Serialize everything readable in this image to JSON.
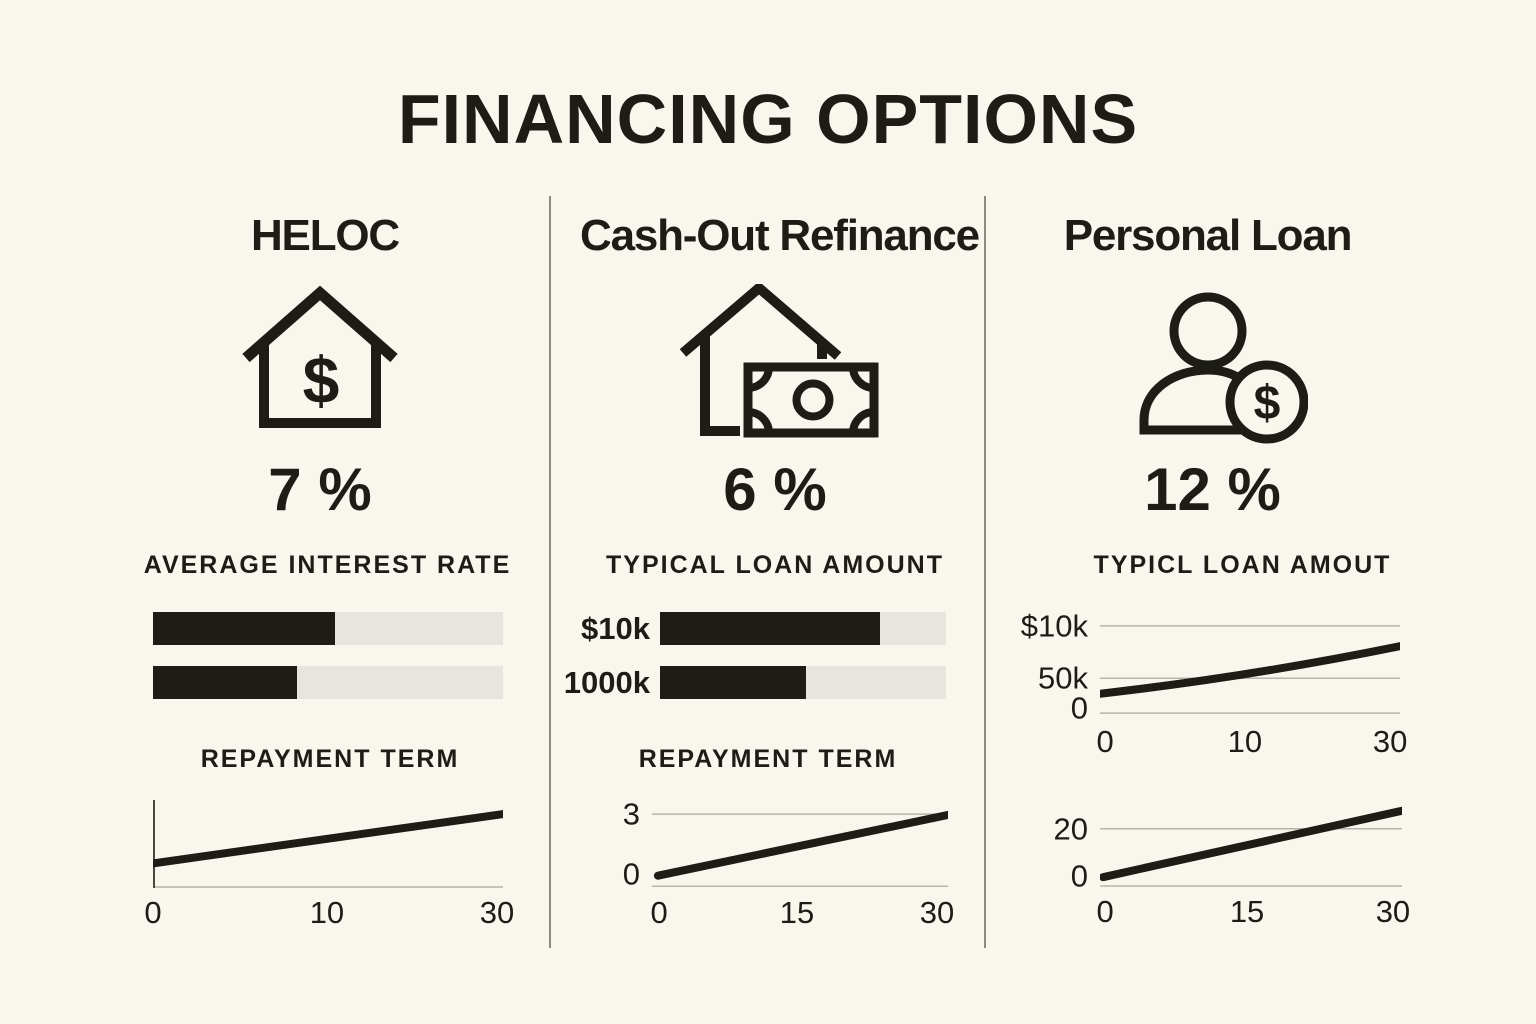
{
  "title": "FINANCING OPTIONS",
  "colors": {
    "background": "#f9f6ee",
    "ink": "#1d1c17",
    "bar_track": "#e8e5de",
    "gridline": "#b7b4ab",
    "divider": "#514e45"
  },
  "columns": [
    {
      "name": "HELOC",
      "icon": "house-dollar-icon",
      "rate": "7 %",
      "section1_label": "AVERAGE INTEREST RATE",
      "section2_label": "REPAYMENT TERM"
    },
    {
      "name": "Cash-Out Refinance",
      "icon": "house-banknote-icon",
      "rate": "6 %",
      "section1_label": "TYPICAL LOAN AMOUNT",
      "section2_label": "REPAYMENT TERM"
    },
    {
      "name": "Personal Loan",
      "icon": "person-coin-icon",
      "rate": "12 %",
      "section1_label": "TYPICL LOAN AMOUT"
    }
  ],
  "chart_data": [
    {
      "id": "heloc-rate-bars",
      "type": "bar",
      "title": "AVERAGE INTEREST RATE",
      "column": "HELOC",
      "orientation": "horizontal",
      "rows": [
        {
          "label": "",
          "fill_pct": 52
        },
        {
          "label": "",
          "fill_pct": 41
        }
      ],
      "note": "two unlabeled comparison bars, dark fill on light track"
    },
    {
      "id": "heloc-term-line",
      "type": "line",
      "title": "REPAYMENT TERM",
      "column": "HELOC",
      "x_range": [
        0,
        30
      ],
      "x_ticks": [
        {
          "label": "0",
          "pct": 0
        },
        {
          "label": "10",
          "pct": 49.7
        },
        {
          "label": "30",
          "pct": 98.3
        }
      ],
      "y_ticks": [],
      "gridlines_pct": [
        100
      ],
      "y_axis": true,
      "curve": false,
      "points_pct": [
        [
          0,
          72
        ],
        [
          100,
          16
        ]
      ],
      "data_est": {
        "x": [
          0,
          30
        ],
        "y_relative": [
          0.3,
          0.85
        ],
        "trend": "rising"
      }
    },
    {
      "id": "cashout-amount-bars",
      "type": "bar",
      "title": "TYPICAL LOAN AMOUNT",
      "column": "Cash-Out Refinance",
      "orientation": "horizontal",
      "rows": [
        {
          "label": "$10k",
          "fill_pct": 77
        },
        {
          "label": "1000k",
          "fill_pct": 51
        }
      ]
    },
    {
      "id": "cashout-term-line",
      "type": "line",
      "title": "REPAYMENT TERM",
      "column": "Cash-Out Refinance",
      "x_range": [
        0,
        30
      ],
      "y_range": [
        0,
        3
      ],
      "x_ticks": [
        {
          "label": "0",
          "pct": 2.4
        },
        {
          "label": "15",
          "pct": 49
        },
        {
          "label": "30",
          "pct": 96.3
        }
      ],
      "y_ticks": [
        {
          "label": "3",
          "pct": 16
        },
        {
          "label": "0",
          "pct": 84
        }
      ],
      "gridlines_pct": [
        16,
        98
      ],
      "y_axis": false,
      "curve": false,
      "points_pct": [
        [
          2,
          86
        ],
        [
          100,
          17
        ]
      ],
      "data_est": {
        "x": [
          0,
          30
        ],
        "y": [
          0,
          3
        ],
        "trend": "rising straight line"
      }
    },
    {
      "id": "personal-amount-line",
      "type": "line",
      "title": "TYPICL LOAN AMOUT",
      "column": "Personal Loan",
      "x_range": [
        0,
        30
      ],
      "x_ticks": [
        {
          "label": "0",
          "pct": 1.7
        },
        {
          "label": "10",
          "pct": 48.3
        },
        {
          "label": "30",
          "pct": 96.7
        }
      ],
      "y_ticks": [
        {
          "label": "$10k",
          "pct": 6
        },
        {
          "label": "50k",
          "pct": 60
        },
        {
          "label": "0",
          "pct": 91
        }
      ],
      "gridlines_pct": [
        6,
        60,
        96
      ],
      "y_axis": false,
      "curve": true,
      "points_pct": [
        [
          0,
          76
        ],
        [
          50,
          55
        ],
        [
          100,
          27
        ]
      ],
      "data_est": {
        "x": [
          0,
          30
        ],
        "y": [
          "~40k",
          "~80k"
        ],
        "trend": "rising curve, steepens toward 30"
      }
    },
    {
      "id": "personal-term-line",
      "type": "line",
      "title": "",
      "column": "Personal Loan",
      "x_range": [
        0,
        30
      ],
      "x_ticks": [
        {
          "label": "0",
          "pct": 1.7
        },
        {
          "label": "15",
          "pct": 48.7
        },
        {
          "label": "30",
          "pct": 97
        }
      ],
      "y_ticks": [
        {
          "label": "20",
          "pct": 29
        },
        {
          "label": "0",
          "pct": 87
        }
      ],
      "gridlines_pct": [
        29,
        100
      ],
      "y_axis": false,
      "curve": false,
      "points_pct": [
        [
          1,
          88
        ],
        [
          100,
          7
        ]
      ],
      "data_est": {
        "x": [
          0,
          30
        ],
        "y": [
          0,
          27
        ],
        "trend": "rising straight line crossing 20 near x=22"
      }
    }
  ]
}
